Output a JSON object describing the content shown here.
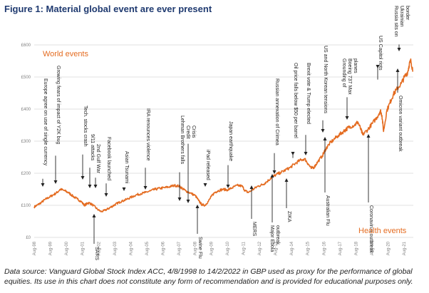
{
  "title": "Figure 1:  Material global event are ever present",
  "source_note": "Data source: Vanguard Global Stock Index ACC, 4/8/1998 to 14/2/2022 in GBP used as proxy for the performance of global equities. Its use in this chart does not constitute any form of recommendation and is provided for educational purposes only.",
  "colors": {
    "line": "#e46c21",
    "text": "#222222",
    "title": "#1f3a70",
    "grid": "#d9d9d9",
    "axis_text": "#7f7f7f"
  },
  "chart_data": {
    "type": "line",
    "xlabel": "",
    "ylabel": "",
    "x_range": [
      "1998-08",
      "2022-02"
    ],
    "y_range": [
      0,
      600
    ],
    "grid": true,
    "y_ticks": [
      "£0",
      "£100",
      "£200",
      "£300",
      "£400",
      "£500",
      "£600"
    ],
    "y_tick_values": [
      0,
      100,
      200,
      300,
      400,
      500,
      600
    ],
    "x_ticks": [
      "Aug-98",
      "Aug-99",
      "Aug-00",
      "Aug-01",
      "Aug-02",
      "Aug-03",
      "Aug-04",
      "Aug-05",
      "Aug-06",
      "Aug-07",
      "Aug-08",
      "Aug-09",
      "Aug-10",
      "Aug-11",
      "Aug-12",
      "Aug-13",
      "Aug-14",
      "Aug-15",
      "Aug-16",
      "Aug-17",
      "Aug-18",
      "Aug-19",
      "Aug-20",
      "Aug-21"
    ],
    "series": [
      {
        "x": [
          1998.58,
          1998.75,
          1999.0,
          1999.25,
          1999.5,
          1999.75,
          2000.0,
          2000.2,
          2000.5,
          2000.75,
          2001.0,
          2001.25,
          2001.5,
          2001.7,
          2001.85,
          2002.0,
          2002.25,
          2002.5,
          2002.75,
          2003.0,
          2003.2,
          2003.4,
          2003.6,
          2003.8,
          2004.0,
          2004.3,
          2004.6,
          2004.9,
          2005.2,
          2005.5,
          2005.8,
          2006.1,
          2006.4,
          2006.7,
          2007.0,
          2007.3,
          2007.6,
          2007.8,
          2008.0,
          2008.3,
          2008.6,
          2008.8,
          2009.0,
          2009.2,
          2009.4,
          2009.6,
          2009.8,
          2010.0,
          2010.3,
          2010.6,
          2010.9,
          2011.2,
          2011.5,
          2011.7,
          2011.9,
          2012.2,
          2012.5,
          2012.8,
          2013.0,
          2013.3,
          2013.6,
          2013.9,
          2014.2,
          2014.5,
          2014.8,
          2015.1,
          2015.4,
          2015.6,
          2015.8,
          2016.0,
          2016.2,
          2016.5,
          2016.7,
          2016.9,
          2017.2,
          2017.5,
          2017.8,
          2018.0,
          2018.2,
          2018.5,
          2018.7,
          2018.9,
          2019.0,
          2019.3,
          2019.6,
          2019.9,
          2020.1,
          2020.2,
          2020.3,
          2020.5,
          2020.7,
          2020.9,
          2021.1,
          2021.4,
          2021.6,
          2021.8,
          2021.9,
          2022.0,
          2022.12
        ],
        "values": [
          95,
          100,
          108,
          118,
          125,
          132,
          140,
          150,
          145,
          138,
          128,
          120,
          112,
          100,
          105,
          108,
          100,
          88,
          80,
          85,
          90,
          96,
          102,
          108,
          112,
          118,
          125,
          132,
          136,
          140,
          145,
          150,
          153,
          155,
          158,
          162,
          160,
          152,
          145,
          138,
          130,
          115,
          102,
          100,
          112,
          128,
          140,
          145,
          150,
          148,
          155,
          162,
          160,
          145,
          140,
          150,
          160,
          165,
          172,
          185,
          195,
          202,
          210,
          218,
          230,
          240,
          245,
          230,
          215,
          220,
          235,
          255,
          275,
          290,
          305,
          318,
          330,
          338,
          345,
          350,
          360,
          335,
          320,
          335,
          355,
          375,
          395,
          380,
          330,
          395,
          420,
          445,
          460,
          480,
          500,
          515,
          540,
          550,
          520
        ]
      }
    ],
    "annotations": [
      "Europe agree on use of single currency",
      "Growing fears of impact of Y2K bug",
      "Tech. stocks crash",
      "9/11 attacks",
      "2nd Gulf War",
      "SARS",
      "Facebook launched",
      "Asian Tsunami",
      "IRA renounces violence",
      "Lehman Brothers falls",
      "Credit Crisis",
      "Swine Flu",
      "iPad released",
      "Japan earthquake",
      "MERS",
      "Russian annexation of Crimea",
      "Major Ebola outbreak",
      "Oil price falls below $50 per barrel",
      "ZIKA",
      "Brexit vote & Trump elected",
      "US and North Korean tensions",
      "Australian Flu",
      "Grounding of Boeing 737 Max planes",
      "Coronavirus outbreak",
      "US Capitol riots",
      "Omicron variant outbreak",
      "Russia sits on Ukrainian border"
    ],
    "corner_labels": {
      "world": "World events",
      "health": "Health events"
    }
  }
}
